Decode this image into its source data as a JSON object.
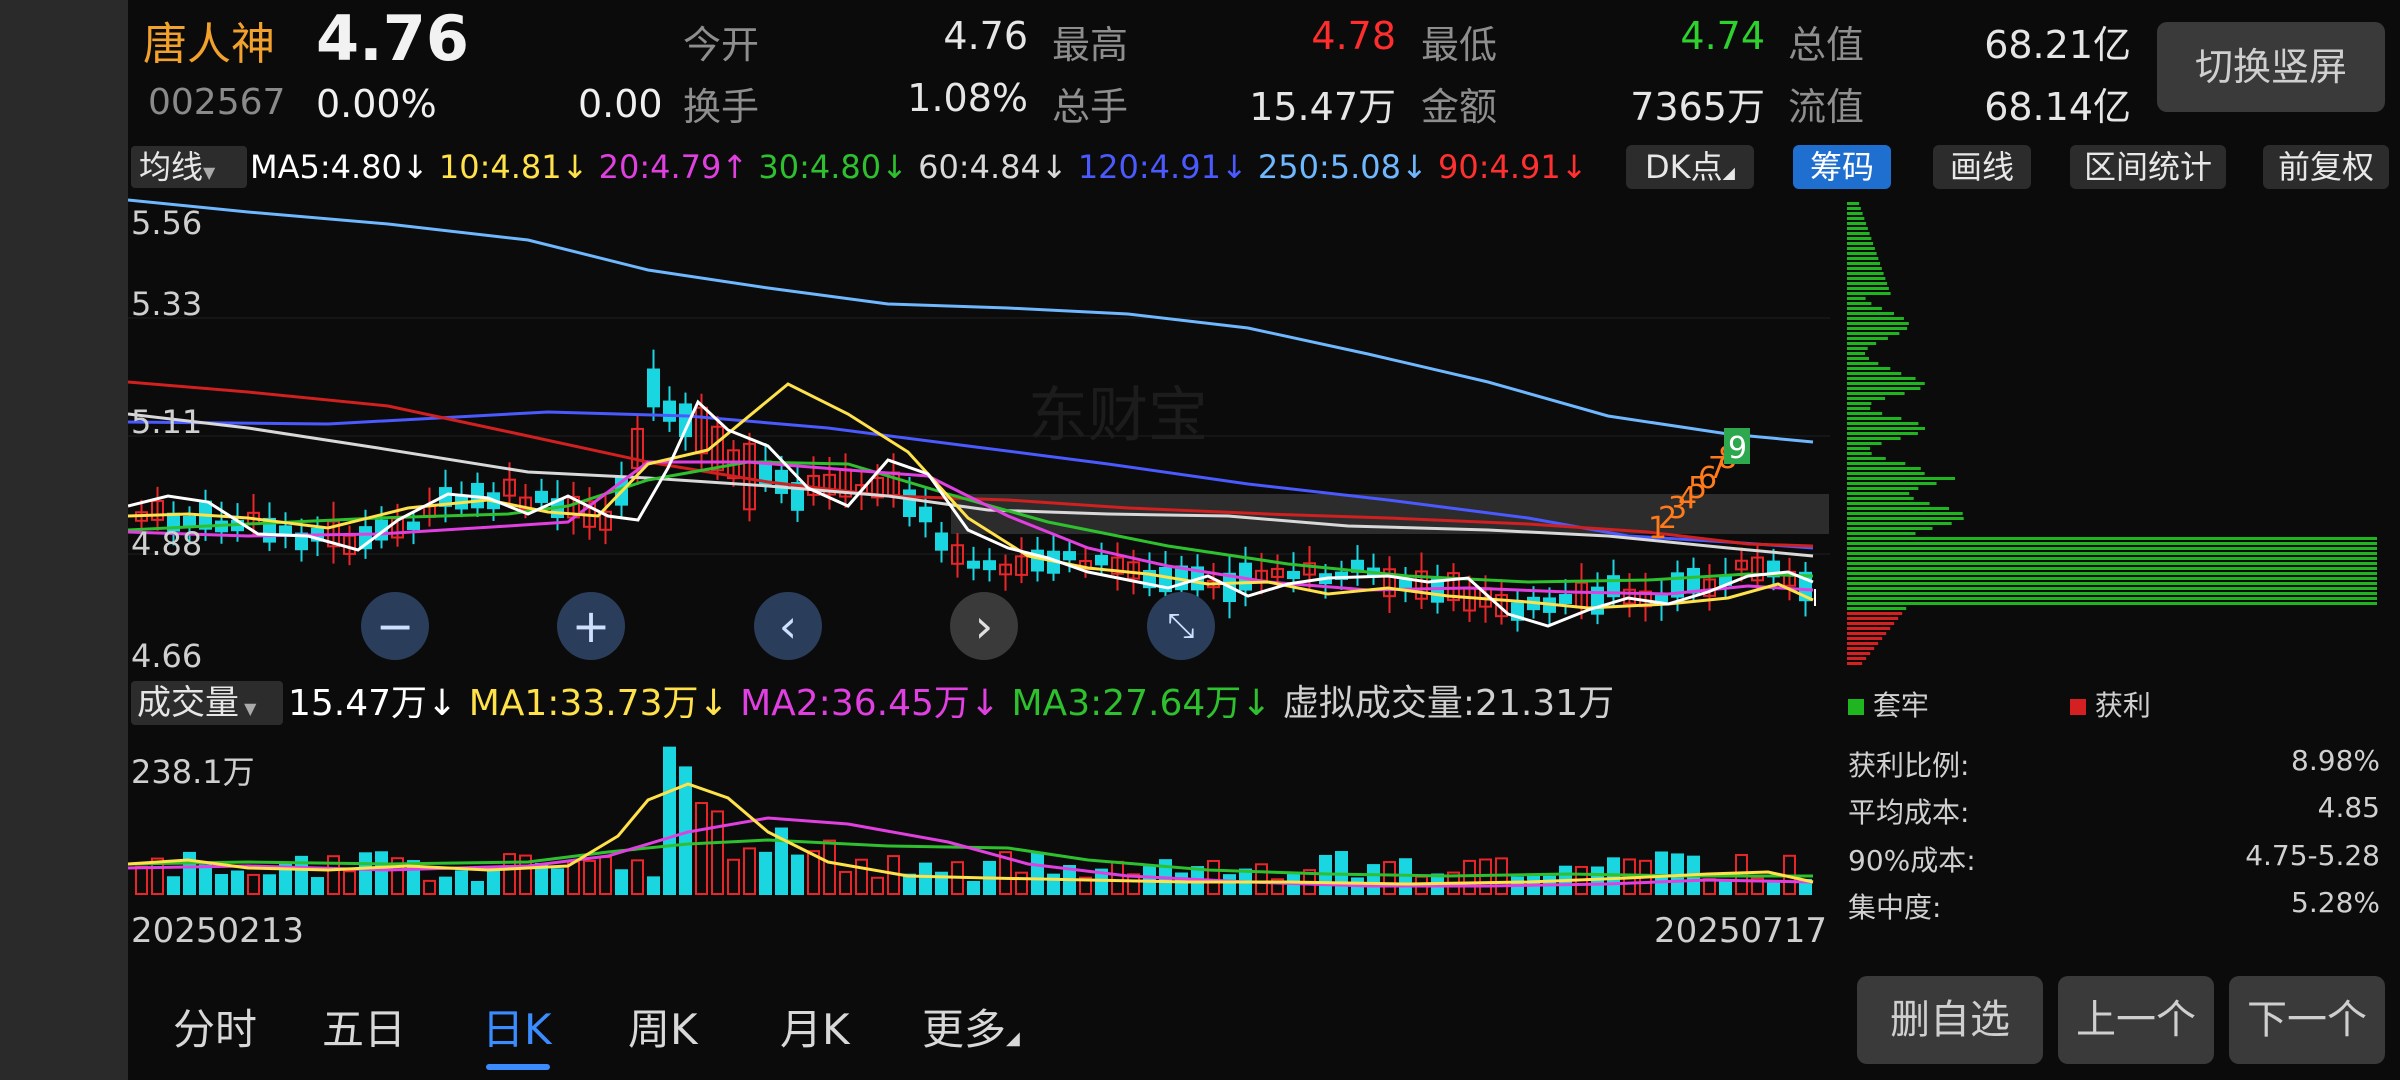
{
  "stock": {
    "name": "唐人神",
    "price": "4.76",
    "code": "002567",
    "change_pct": "0.00%",
    "change": "0.00"
  },
  "quote": {
    "open_label": "今开",
    "open": "4.76",
    "high_label": "最高",
    "high": "4.78",
    "low_label": "最低",
    "low": "4.74",
    "mktcap_label": "总值",
    "mktcap": "68.21亿",
    "turnover_label": "换手",
    "turnover": "1.08%",
    "vol_label": "总手",
    "vol": "15.47万",
    "amount_label": "金额",
    "amount": "7365万",
    "float_label": "流值",
    "float": "68.14亿"
  },
  "switch_button": "切换竖屏",
  "ma_bar": {
    "selector": "均线",
    "items": [
      {
        "text": "MA5:4.80↓",
        "color": "#ffffff"
      },
      {
        "text": "10:4.81↓",
        "color": "#ffe14a"
      },
      {
        "text": "20:4.79↑",
        "color": "#e040e0"
      },
      {
        "text": "30:4.80↓",
        "color": "#2ec02e"
      },
      {
        "text": "60:4.84↓",
        "color": "#d8d8d8"
      },
      {
        "text": "120:4.91↓",
        "color": "#4a5aff"
      },
      {
        "text": "250:5.08↓",
        "color": "#6fb8ff"
      },
      {
        "text": "90:4.91↓",
        "color": "#ff3030"
      }
    ]
  },
  "tools": {
    "dk": "DK点",
    "chips": "筹码",
    "draw": "画线",
    "range": "区间统计",
    "adjust": "前复权"
  },
  "price_axis": [
    "5.56",
    "5.33",
    "5.11",
    "4.88",
    "4.66"
  ],
  "volume_bar": {
    "selector": "成交量",
    "items": [
      {
        "text": "15.47万↓",
        "color": "#ffffff"
      },
      {
        "text": "MA1:33.73万↓",
        "color": "#ffe14a"
      },
      {
        "text": "MA2:36.45万↓",
        "color": "#e040e0"
      },
      {
        "text": "MA3:27.64万↓",
        "color": "#2ec02e"
      },
      {
        "text": "虚拟成交量:21.31万",
        "color": "#d0d0d0"
      }
    ],
    "max_label": "238.1万"
  },
  "dates": {
    "start": "20250213",
    "end": "20250717"
  },
  "chip_legend": {
    "trapped": "套牢",
    "profit": "获利"
  },
  "chip_stats": [
    {
      "label": "获利比例:",
      "value": "8.98%"
    },
    {
      "label": "平均成本:",
      "value": "4.85"
    },
    {
      "label": "90%成本:",
      "value": "4.75-5.28"
    },
    {
      "label": "集中度:",
      "value": "5.28%"
    }
  ],
  "bottom_tabs": [
    "分时",
    "五日",
    "日K",
    "周K",
    "月K",
    "更多"
  ],
  "active_tab": "日K",
  "actions": {
    "remove": "删自选",
    "prev": "上一个",
    "next": "下一个"
  },
  "td_marks": [
    "1",
    "2",
    "3",
    "4",
    "5",
    "6",
    "7",
    "8",
    "9"
  ],
  "colors": {
    "up": "#e8262a",
    "down": "#19d6e0",
    "chip_green": "#1fb51f",
    "chip_red": "#d42020",
    "accent": "#3b8cff"
  }
}
